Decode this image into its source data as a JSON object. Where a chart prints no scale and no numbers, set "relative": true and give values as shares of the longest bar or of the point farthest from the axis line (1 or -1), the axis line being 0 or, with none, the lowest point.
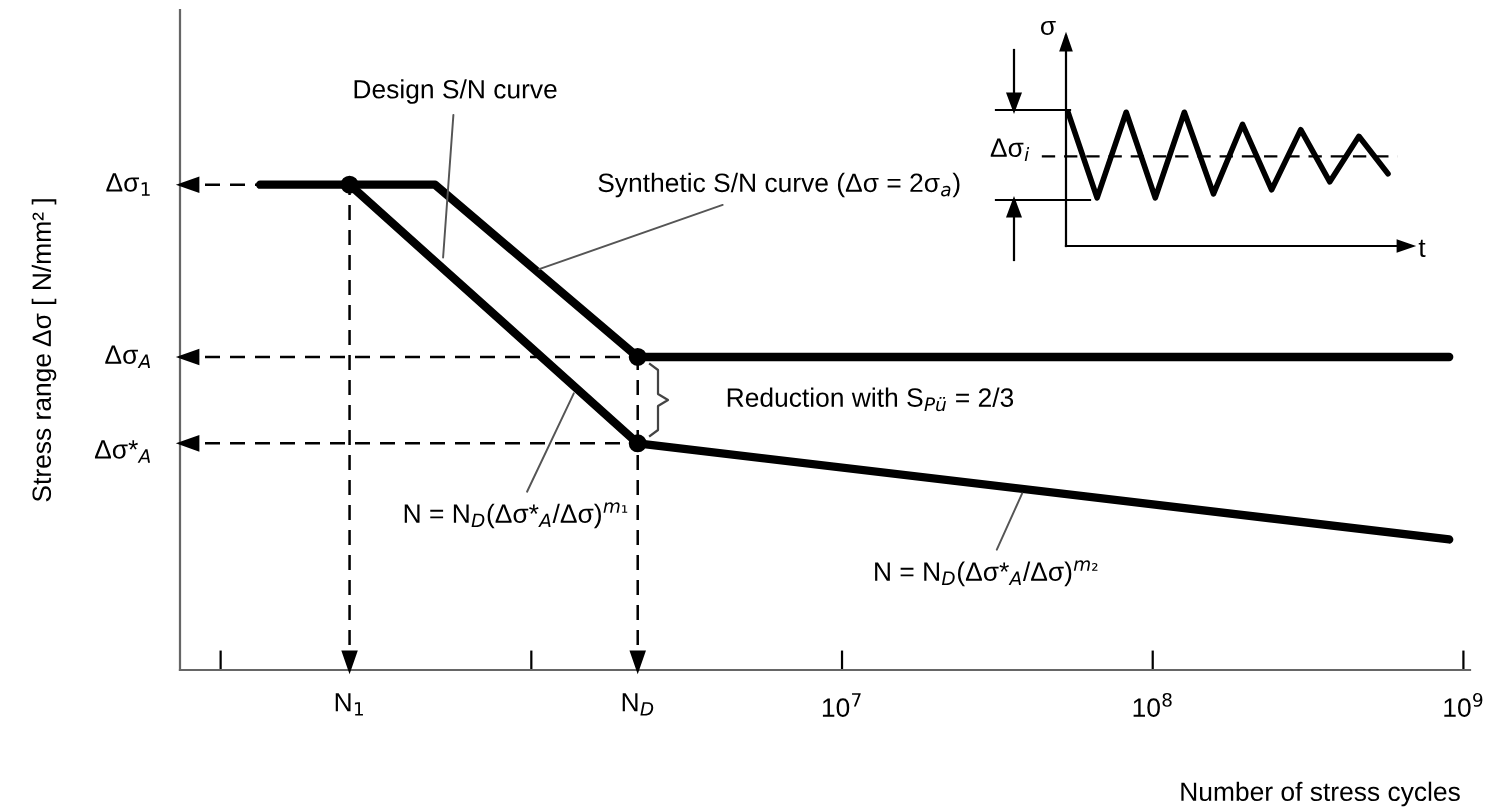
{
  "chart_data": [
    {
      "type": "line",
      "relative": true,
      "xlabel": "Number of stress cycles",
      "ylabel": "Stress range Δσ [ N/mm² ]",
      "log": "x",
      "xlim": [
        74000,
        1050000000
      ],
      "xticks": [
        {
          "value": 100000,
          "label": null
        },
        {
          "value": 1000000,
          "label": null
        },
        {
          "value": 10000000,
          "label": "10$^{7}$"
        },
        {
          "value": 100000000,
          "label": "10$^{8}$"
        },
        {
          "value": 1000000000,
          "label": "10$^{9}$"
        }
      ],
      "series": [
        {
          "color": "#000000",
          "x": [
            134000,
            490000,
            2200000,
            900000000
          ],
          "values": [
            1,
            1,
            0.645,
            0.645
          ]
        },
        {
          "color": "#000000",
          "x": [
            260000,
            2200000,
            900000000
          ],
          "values": [
            1,
            0.467,
            0.269
          ]
        },
        {
          "type": "scatter",
          "color": "#000000",
          "marker": "circle",
          "x": [
            260000,
            2200000,
            2200000
          ],
          "values": [
            1,
            0.645,
            0.467
          ]
        }
      ],
      "ref_lines": [
        {
          "axis": "y",
          "value": 1,
          "label": "Δσ$_{1}$",
          "line_style": "dashed"
        },
        {
          "axis": "y",
          "value": 0.645,
          "label": "Δσ$_{A}$",
          "line_style": "dashed"
        },
        {
          "axis": "y",
          "value": 0.467,
          "label": "Δσ*$_{A}$",
          "line_style": "dashed"
        },
        {
          "axis": "x",
          "value": 260000,
          "label": "N$_{1}$",
          "line_style": "dashed"
        },
        {
          "axis": "x",
          "value": 2200000,
          "label": "N$_{D}$",
          "line_style": "dashed"
        }
      ],
      "annotations": [
        {
          "text": "Design S/N curve",
          "x": 520000,
          "y": 0.85
        },
        {
          "text": "Synthetic S/N curve (Δσ = 2σ$_{a}$)",
          "x": 1060000,
          "y": 0.826
        },
        {
          "text": "N = N$_{D}$(Δσ*$_{A}$/Δσ)$^{m₁}$",
          "x": 1370000,
          "y": 0.57
        },
        {
          "text": "N = N$_{D}$(Δσ*$_{A}$/Δσ)$^{m₂}$",
          "x": 38000000,
          "y": 0.364
        },
        "Reduction with S$_{Pü}$ = 2/3"
      ]
    },
    {
      "type": "line",
      "relative": true,
      "xlabel": "t",
      "ylabel": "σ",
      "categories": [
        null,
        null,
        null,
        null,
        null,
        null,
        null,
        null,
        null,
        null,
        null,
        null
      ],
      "series": [
        {
          "color": "#000000",
          "values": [
            1.0,
            0.36,
            1.0,
            0.36,
            1.0,
            0.39,
            0.91,
            0.42,
            0.87,
            0.48,
            0.82,
            0.54
          ]
        }
      ],
      "ref_lines": [
        {
          "axis": "y",
          "value": 0.67,
          "line_style": "dashed"
        }
      ],
      "annotations": [
        "Δσ$_{i}$"
      ]
    }
  ]
}
